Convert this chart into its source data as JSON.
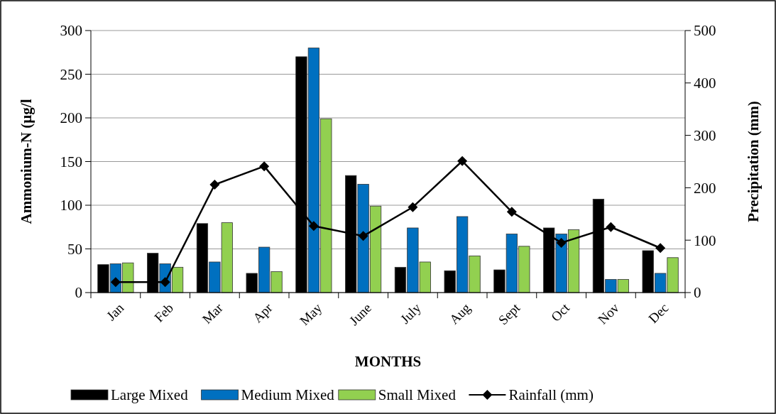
{
  "chart_data": {
    "type": "bar",
    "xlabel": "MONTHS",
    "ylabel": "Ammonium-N  (µg/l",
    "y2label": "Precipitation (mm)",
    "categories": [
      "Jan",
      "Feb",
      "Mar",
      "Apr",
      "May",
      "June",
      "July",
      "Aug",
      "Sept",
      "Oct",
      "Nov",
      "Dec"
    ],
    "series": [
      {
        "name": "Large Mixed",
        "color": "#000000",
        "values": [
          32,
          45,
          79,
          22,
          270,
          134,
          29,
          25,
          26,
          74,
          107,
          48
        ]
      },
      {
        "name": "Medium Mixed",
        "color": "#0070c0",
        "values": [
          33,
          33,
          35,
          52,
          280,
          124,
          74,
          87,
          67,
          67,
          15,
          22
        ]
      },
      {
        "name": "Small Mixed",
        "color": "#92d050",
        "values": [
          34,
          29,
          80,
          24,
          199,
          99,
          35,
          42,
          53,
          72,
          15,
          40
        ]
      },
      {
        "name": "Rainfall (mm)",
        "type": "line",
        "axis": "y2",
        "color": "#000000",
        "marker": "diamond",
        "values": [
          20,
          20,
          206,
          241,
          127,
          108,
          163,
          251,
          154,
          95,
          125,
          85
        ]
      }
    ],
    "ylim": [
      0,
      300
    ],
    "yticks": [
      0,
      50,
      100,
      150,
      200,
      250,
      300
    ],
    "y2lim": [
      0,
      500
    ],
    "y2ticks": [
      0,
      100,
      200,
      300,
      400,
      500
    ],
    "grid": "y",
    "legend": "bottom"
  }
}
